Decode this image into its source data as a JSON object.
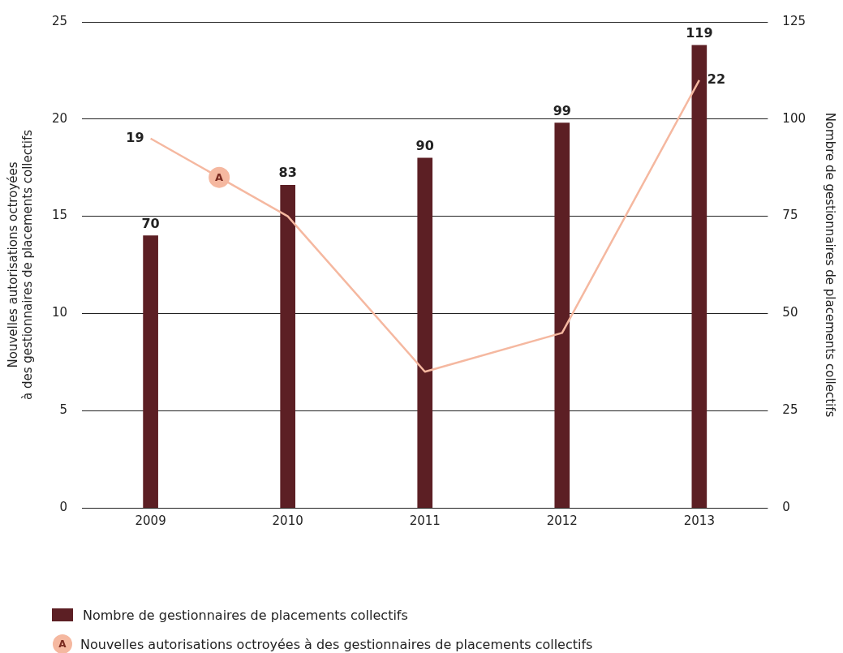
{
  "chart_data": {
    "type": "bar",
    "categories": [
      "2009",
      "2010",
      "2011",
      "2012",
      "2013"
    ],
    "ylabel": "Nouvelles autorisations octroyées\nà des gestionnaires de placements collectifs",
    "y2label": "Nombre de gestionnaires de placements collectifs",
    "ylim": [
      0,
      25
    ],
    "yticks": [
      0,
      5,
      10,
      15,
      20,
      25
    ],
    "y2lim": [
      0,
      125
    ],
    "y2ticks": [
      0,
      25,
      50,
      75,
      100,
      125
    ],
    "series": [
      {
        "name": "Nombre de gestionnaires de placements collectifs",
        "axis": "y2",
        "color": "#5c1f24",
        "values": [
          70,
          83,
          90,
          99,
          119
        ],
        "value_labels": [
          "70",
          "83",
          "90",
          "99",
          "119"
        ]
      },
      {
        "name": "Nouvelles autorisations octroyées à des gestionnaires de placements collectifs",
        "type": "line",
        "axis": "y",
        "color": "#f5b8a0",
        "values": [
          19,
          15,
          7,
          9,
          22
        ],
        "value_labels": [
          "19",
          null,
          null,
          null,
          "22"
        ]
      }
    ],
    "annotations": [
      "A"
    ],
    "grid": "y",
    "legend": "bottom",
    "marker": "none"
  }
}
